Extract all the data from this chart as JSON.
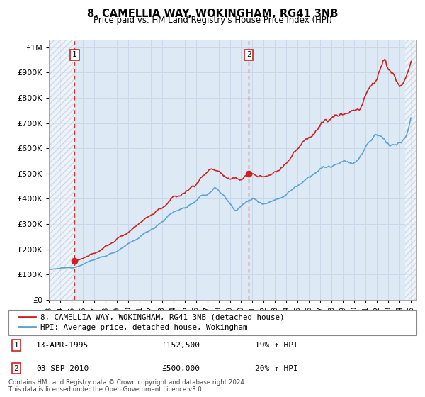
{
  "title": "8, CAMELLIA WAY, WOKINGHAM, RG41 3NB",
  "subtitle": "Price paid vs. HM Land Registry's House Price Index (HPI)",
  "x_start": 1993.0,
  "x_end": 2025.5,
  "y_min": 0,
  "y_max": 1000000,
  "yticks": [
    0,
    100000,
    200000,
    300000,
    400000,
    500000,
    600000,
    700000,
    800000,
    900000,
    1000000
  ],
  "xticks": [
    1993,
    1994,
    1995,
    1996,
    1997,
    1998,
    1999,
    2000,
    2001,
    2002,
    2003,
    2004,
    2005,
    2006,
    2007,
    2008,
    2009,
    2010,
    2011,
    2012,
    2013,
    2014,
    2015,
    2016,
    2017,
    2018,
    2019,
    2020,
    2021,
    2022,
    2023,
    2024,
    2025
  ],
  "sale1_x": 1995.28,
  "sale1_y": 152500,
  "sale2_x": 2010.67,
  "sale2_y": 500000,
  "hatch_end_right": 2024.5,
  "hpi_line_color": "#5ba3d0",
  "price_line_color": "#cc2222",
  "sale_dot_color": "#cc2222",
  "vline_color": "#cc2222",
  "grid_color": "#c8d8e8",
  "bg_color": "#ddeaf6",
  "legend_label1": "8, CAMELLIA WAY, WOKINGHAM, RG41 3NB (detached house)",
  "legend_label2": "HPI: Average price, detached house, Wokingham",
  "note1_label": "1",
  "note1_date": "13-APR-1995",
  "note1_price": "£152,500",
  "note1_hpi": "19% ↑ HPI",
  "note2_label": "2",
  "note2_date": "03-SEP-2010",
  "note2_price": "£500,000",
  "note2_hpi": "20% ↑ HPI",
  "footer": "Contains HM Land Registry data © Crown copyright and database right 2024.\nThis data is licensed under the Open Government Licence v3.0."
}
